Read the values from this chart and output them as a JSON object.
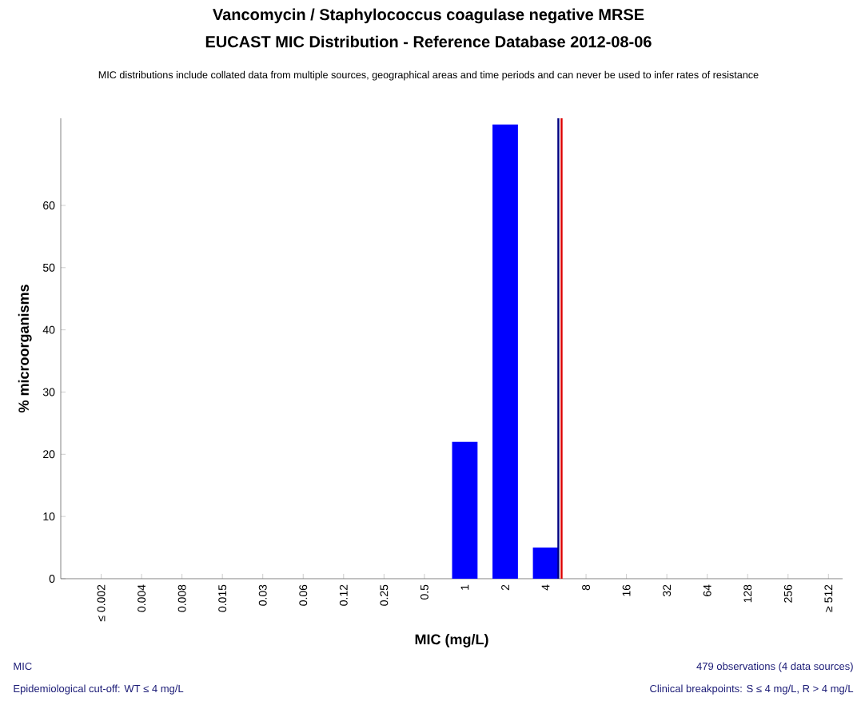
{
  "chart_data": {
    "type": "bar",
    "title": "Vancomycin / Staphylococcus coagulase negative MRSE",
    "subtitle": "EUCAST MIC Distribution - Reference Database 2012-08-06",
    "xlabel": "MIC (mg/L)",
    "ylabel": "% microorganisms",
    "categories": [
      "≤ 0.002",
      "0.004",
      "0.008",
      "0.015",
      "0.03",
      "0.06",
      "0.12",
      "0.25",
      "0.5",
      "1",
      "2",
      "4",
      "8",
      "16",
      "32",
      "64",
      "128",
      "256",
      "≥ 512"
    ],
    "values": [
      0,
      0,
      0,
      0,
      0,
      0,
      0,
      0,
      0,
      22,
      73,
      5,
      0,
      0,
      0,
      0,
      0,
      0,
      0
    ],
    "color": "#0000ff",
    "ylim": [
      0,
      74
    ],
    "yticks": [
      0,
      10,
      20,
      30,
      40,
      50,
      60
    ],
    "grid": false,
    "ref_lines": [
      {
        "axis": "x",
        "value": "4",
        "color": "#000080"
      },
      {
        "axis": "x",
        "value": "4",
        "color": "#dd0000"
      }
    ],
    "annotations": [
      "MIC distributions include collated data from multiple sources, geographical areas and time periods and can never be used to infer rates of resistance",
      "MIC",
      "Epidemiological cut-off: WT ≤ 4 mg/L",
      "479 observations (4 data sources)",
      "Clinical breakpoints: S ≤ 4 mg/L,  R > 4 mg/L"
    ]
  }
}
